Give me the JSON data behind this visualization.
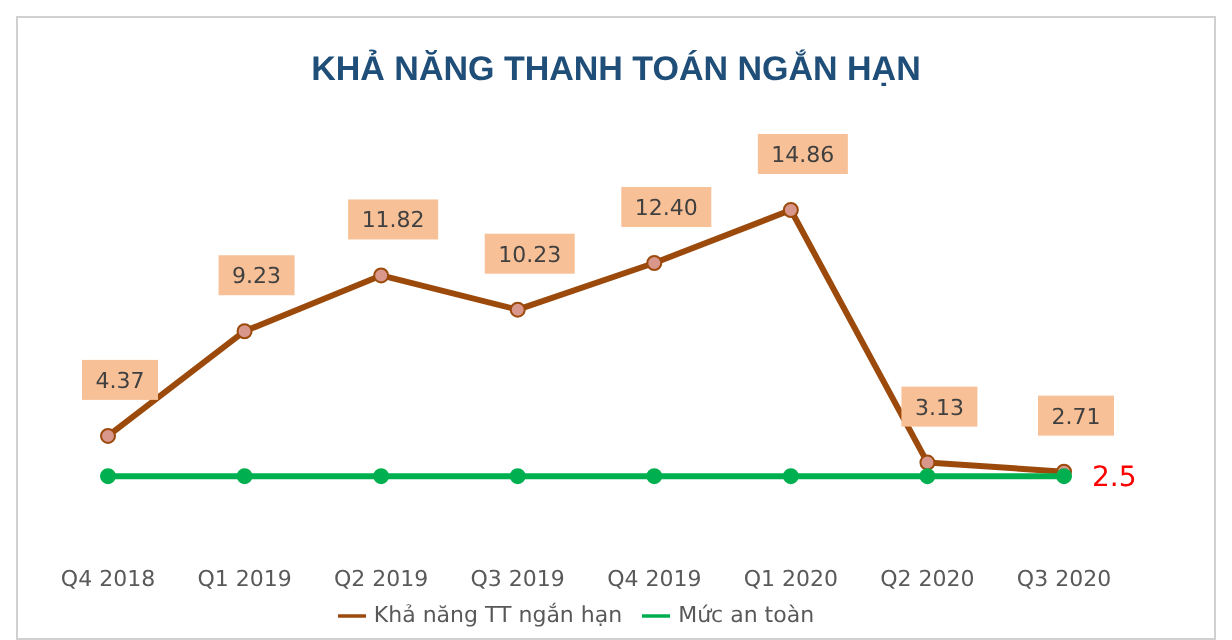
{
  "chart_data": {
    "type": "line",
    "title": "KHẢ NĂNG THANH TOÁN NGẮN HẠN",
    "categories": [
      "Q4 2018",
      "Q1 2019",
      "Q2 2019",
      "Q3 2019",
      "Q4 2019",
      "Q1 2020",
      "Q2 2020",
      "Q3 2020"
    ],
    "series": [
      {
        "name": "Khả năng TT ngắn hạn",
        "color": "#9c4a0c",
        "values": [
          4.37,
          9.23,
          11.82,
          10.23,
          12.4,
          14.86,
          3.13,
          2.71
        ],
        "value_labels": [
          "4.37",
          "9.23",
          "11.82",
          "10.23",
          "12.40",
          "14.86",
          "3.13",
          "2.71"
        ],
        "marker": "circle"
      },
      {
        "name": "Mức an toàn",
        "color": "#00b050",
        "values": [
          2.5,
          2.5,
          2.5,
          2.5,
          2.5,
          2.5,
          2.5,
          2.5
        ],
        "value_labels": [
          null,
          null,
          null,
          null,
          null,
          null,
          null,
          "2.5"
        ],
        "marker": "circle"
      }
    ],
    "grid": false,
    "legend": "bottom"
  }
}
